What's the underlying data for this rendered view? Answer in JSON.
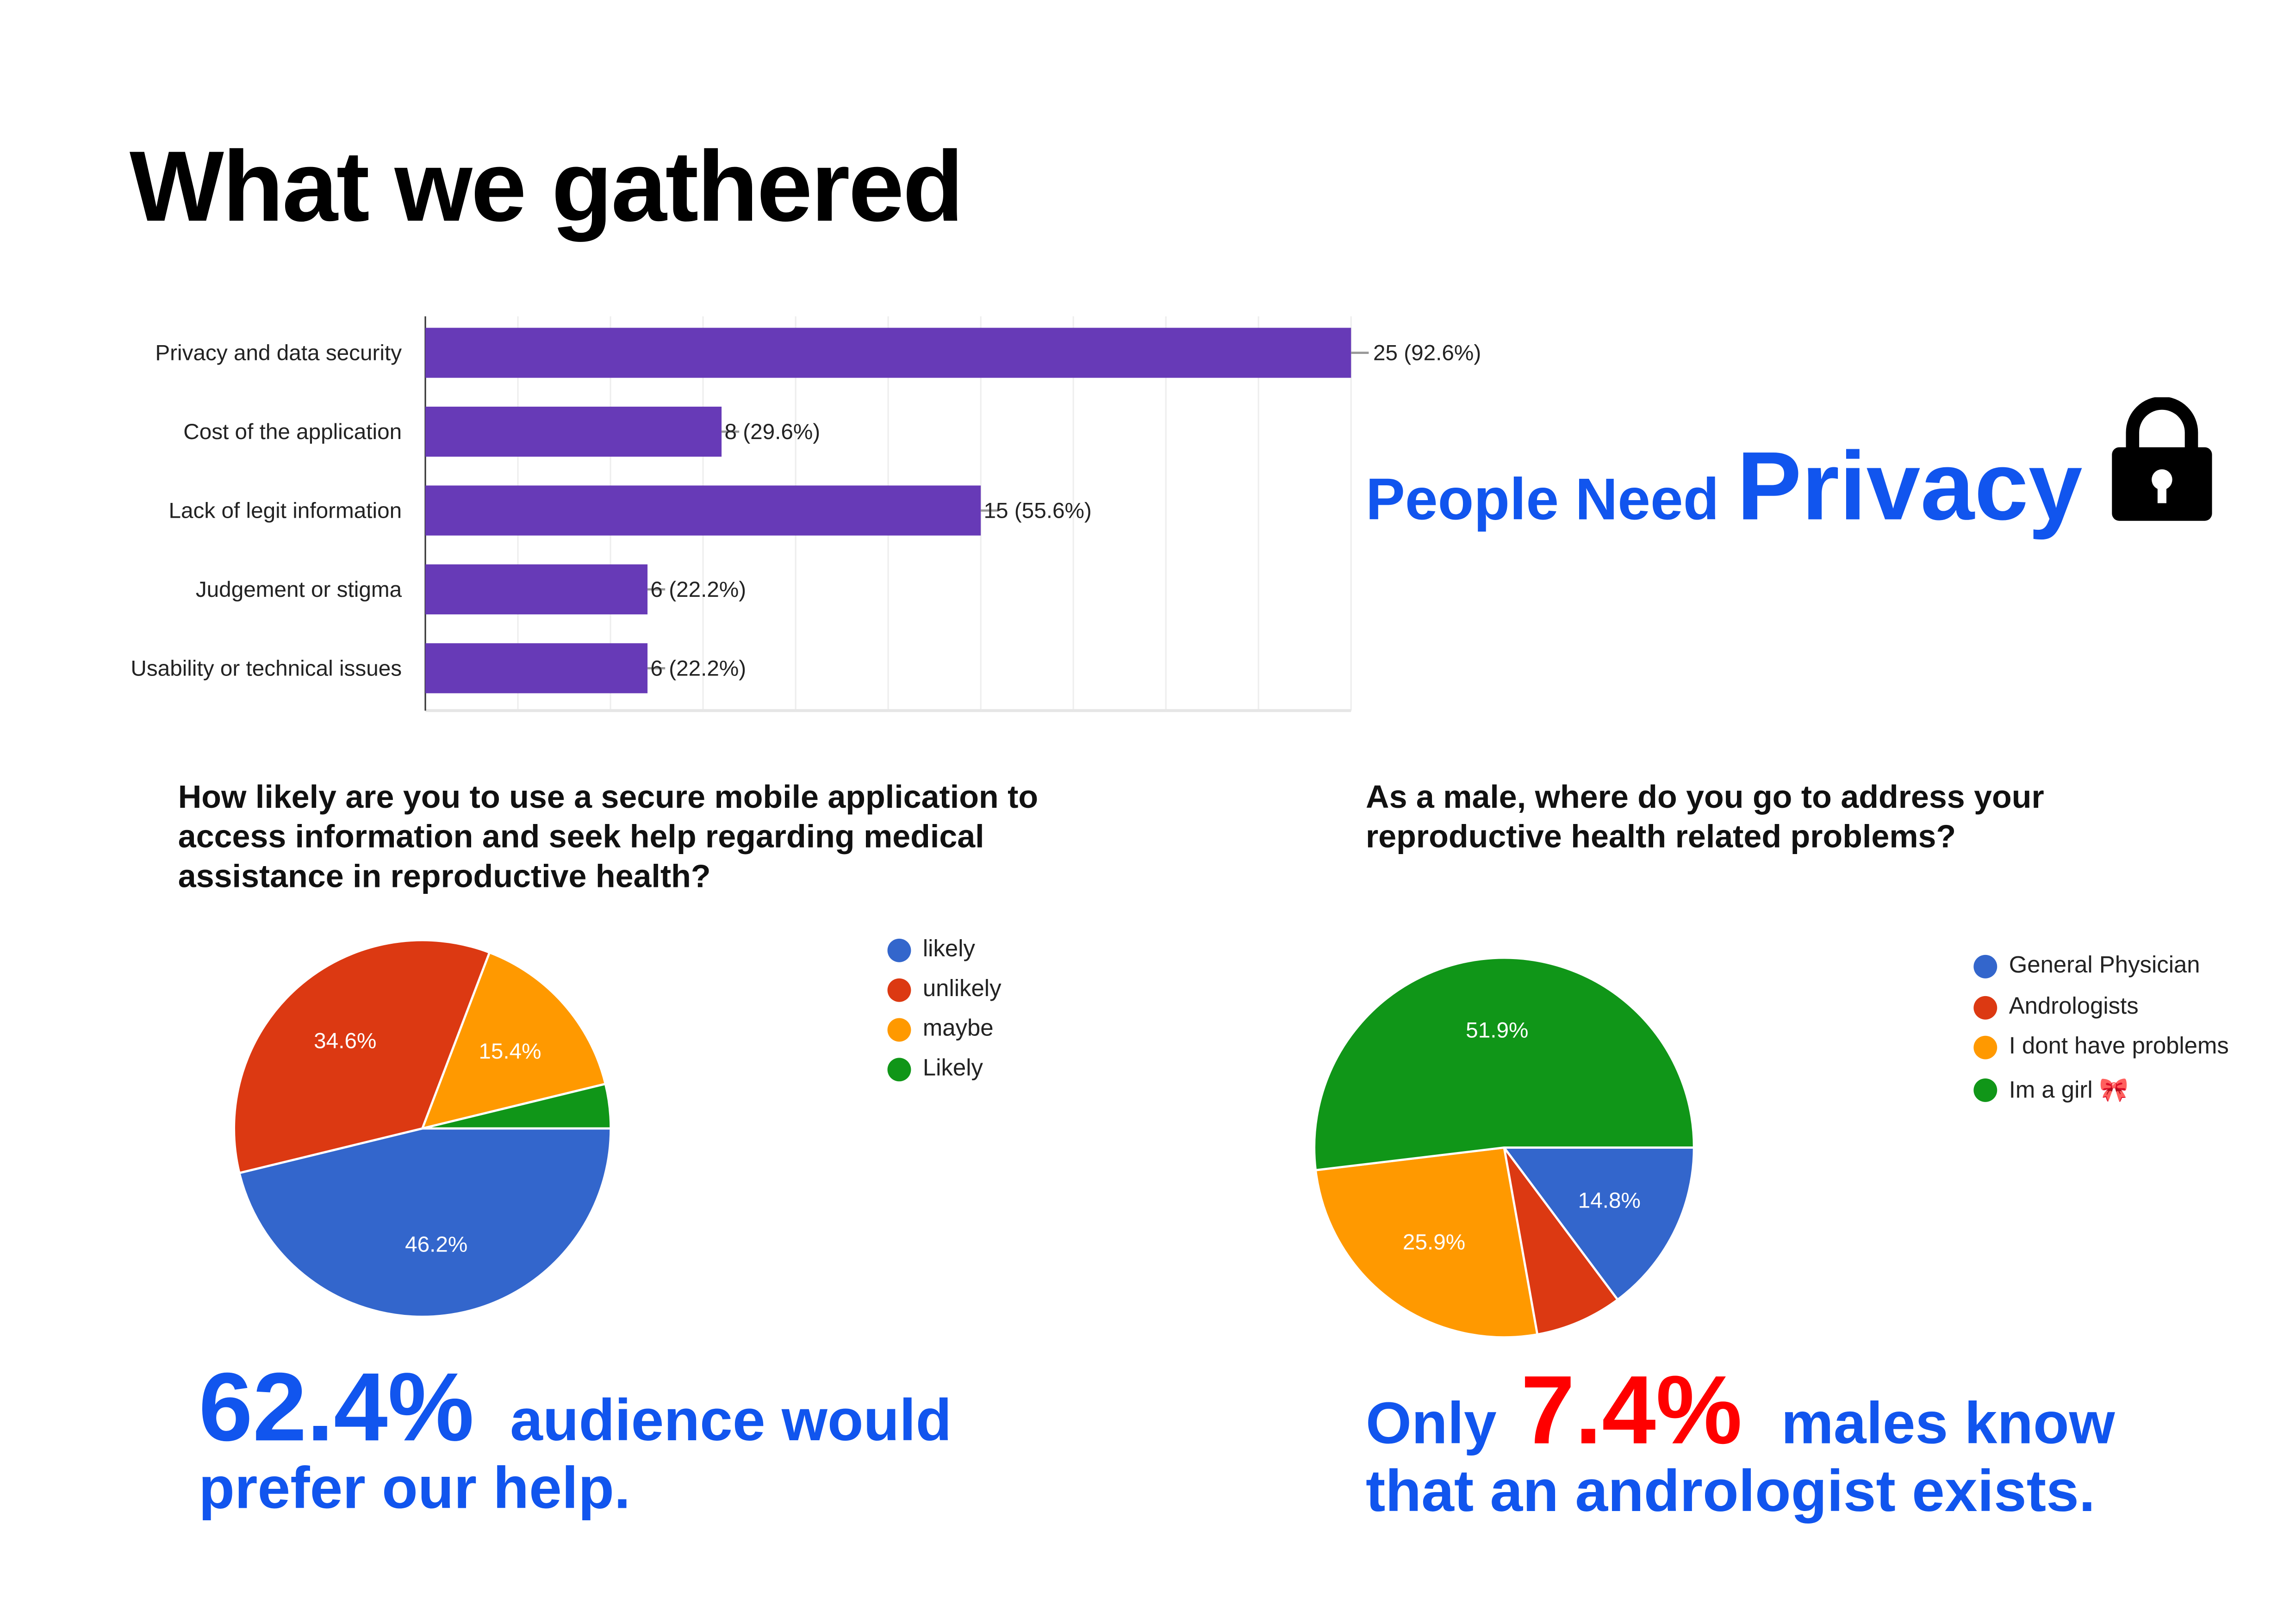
{
  "page": {
    "title": "What we gathered"
  },
  "privacy_callout": {
    "prefix": "People Need",
    "emphasis": "Privacy",
    "icon": "lock-icon"
  },
  "chart_data": [
    {
      "type": "bar",
      "orientation": "horizontal",
      "categories": [
        "Privacy and data security",
        "Cost of the application",
        "Lack of legit information",
        "Judgement or stigma",
        "Usability or technical issues"
      ],
      "values": [
        25,
        8,
        15,
        6,
        6
      ],
      "data_labels": [
        "25 (92.6%)",
        "8 (29.6%)",
        "15 (55.6%)",
        "6 (22.2%)",
        "6 (22.2%)"
      ],
      "xlim": [
        0,
        25
      ],
      "grid": true,
      "color": "#673ab7"
    },
    {
      "type": "pie",
      "title": "How likely are you to use a secure mobile application to access information and seek help regarding medical assistance in reproductive health?",
      "labels": [
        "likely",
        "unlikely",
        "maybe",
        "Likely"
      ],
      "values": [
        46.2,
        34.6,
        15.4,
        3.8
      ],
      "slice_labels": [
        "46.2%",
        "34.6%",
        "15.4%",
        ""
      ],
      "colors": [
        "#3366cc",
        "#dc3912",
        "#ff9900",
        "#109618"
      ],
      "legend": "right"
    },
    {
      "type": "pie",
      "title": "As a male, where do you go to address your reproductive health related problems?",
      "labels": [
        "General Physician",
        "Andrologists",
        "I dont have problems",
        "Im a girl 🎀"
      ],
      "values": [
        14.8,
        7.4,
        25.9,
        51.9
      ],
      "slice_labels": [
        "14.8%",
        "",
        "25.9%",
        "51.9%"
      ],
      "colors": [
        "#3366cc",
        "#dc3912",
        "#ff9900",
        "#109618"
      ],
      "legend": "right"
    }
  ],
  "stat_left": {
    "number": "62.4%",
    "line1": "audience would",
    "line2": "prefer our help."
  },
  "stat_right": {
    "prefix": "Only",
    "number": "7.4%",
    "line1": "males know",
    "line2": "that an andrologist exists."
  }
}
